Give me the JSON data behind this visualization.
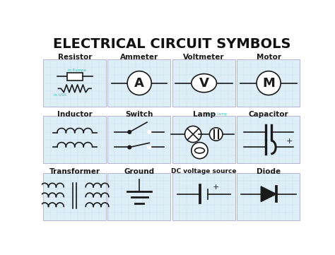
{
  "title": "ELECTRICAL CIRCUIT SYMBOLS",
  "title_fontsize": 14,
  "title_fontweight": "bold",
  "bg_color": "#ffffff",
  "grid_color": "#c5dce8",
  "cell_bg": "#ddeef6",
  "symbol_color": "#1a1a1a",
  "label_fontsize": 7.5,
  "label_fontweight": "bold",
  "teal_color": "#3ab8b0",
  "rows": [
    [
      "Resistor",
      "Ammeter",
      "Voltmeter",
      "Motor"
    ],
    [
      "Inductor",
      "Switch",
      "Lamp",
      "Capacitor"
    ],
    [
      "Transformer",
      "Ground",
      "DC voltage source",
      "Diode"
    ]
  ]
}
